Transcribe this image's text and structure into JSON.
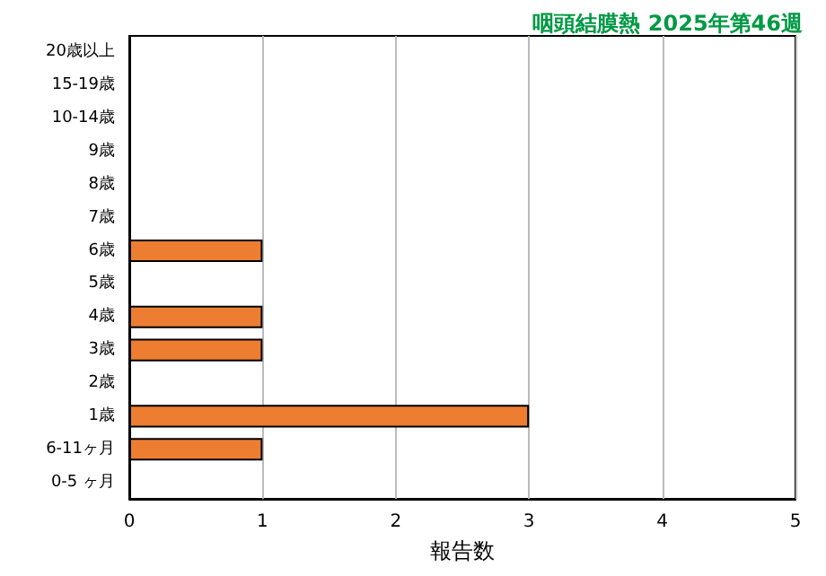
{
  "chart_data": {
    "type": "bar",
    "orientation": "horizontal",
    "title": "咽頭結膜熱 2025年第46週",
    "xlabel": "報告数",
    "categories": [
      "20歳以上",
      "15-19歳",
      "10-14歳",
      "9歳",
      "8歳",
      "7歳",
      "6歳",
      "5歳",
      "4歳",
      "3歳",
      "2歳",
      "1歳",
      "6-11ヶ月",
      "0-5 ヶ月"
    ],
    "values": [
      0,
      0,
      0,
      0,
      0,
      0,
      1,
      0,
      1,
      1,
      0,
      3,
      1,
      0
    ],
    "color": "#ed7d31",
    "xlim": [
      0,
      5
    ],
    "xticks": [
      0,
      1,
      2,
      3,
      4,
      5
    ],
    "grid": "x"
  }
}
